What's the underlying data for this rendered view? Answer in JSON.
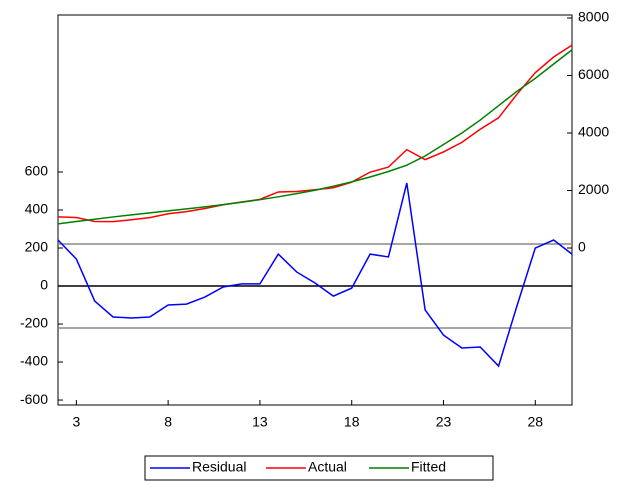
{
  "chart_data": {
    "type": "line",
    "x": [
      2,
      3,
      4,
      5,
      6,
      7,
      8,
      9,
      10,
      11,
      12,
      13,
      14,
      15,
      16,
      17,
      18,
      19,
      20,
      21,
      22,
      23,
      24,
      25,
      26,
      27,
      28,
      29,
      30
    ],
    "xlim": [
      2,
      30
    ],
    "xticks": [
      3,
      8,
      13,
      18,
      23,
      28
    ],
    "ylim": [
      -626,
      1426
    ],
    "yticks": [
      -600,
      -400,
      -200,
      0,
      200,
      400,
      600
    ],
    "y2lim": [
      -5461,
      8104
    ],
    "y2ticks": [
      0,
      2000,
      4000,
      6000,
      8000
    ],
    "reference_lines": [
      221,
      -221
    ],
    "legend": "bottom",
    "series": [
      {
        "name": "Residual",
        "color": "#0000ff",
        "values": [
          242,
          142,
          -79,
          -163,
          -168,
          -163,
          -100,
          -95,
          -58,
          -5,
          11,
          11,
          168,
          74,
          16,
          -53,
          -11,
          168,
          153,
          542,
          -126,
          -258,
          -326,
          -321,
          -421,
          -105,
          200,
          242,
          168
        ]
      },
      {
        "name": "Actual",
        "color": "#ff0000",
        "axis": "y2",
        "values": [
          1082,
          1062,
          921,
          917,
          982,
          1057,
          1190,
          1265,
          1372,
          1505,
          1601,
          1691,
          1948,
          1964,
          2026,
          2097,
          2289,
          2638,
          2813,
          3422,
          3074,
          3342,
          3674,
          4129,
          4529,
          5345,
          6100,
          6642,
          7058
        ]
      },
      {
        "name": "Fitted",
        "color": "#008000",
        "axis": "y2",
        "values": [
          840,
          920,
          1000,
          1080,
          1150,
          1220,
          1290,
          1360,
          1430,
          1510,
          1590,
          1680,
          1780,
          1890,
          2010,
          2150,
          2300,
          2470,
          2660,
          2880,
          3200,
          3600,
          4000,
          4450,
          4950,
          5450,
          5900,
          6400,
          6890
        ]
      }
    ]
  }
}
